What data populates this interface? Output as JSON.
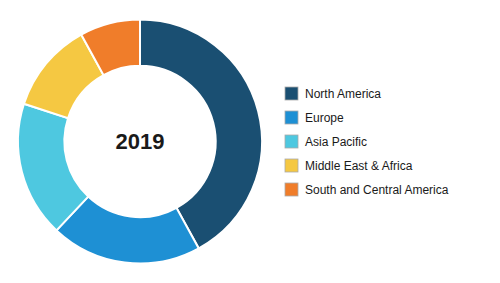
{
  "chart_data": {
    "type": "donut",
    "categories": [
      "North America",
      "Europe",
      "Asia Pacific",
      "Middle East & Africa",
      "South and Central America"
    ],
    "values": [
      42,
      20,
      18,
      12,
      8
    ],
    "colors": [
      "#1a4f72",
      "#1e90d4",
      "#4ec8e0",
      "#f5c842",
      "#f07d2a"
    ],
    "annotations": [
      "2019"
    ],
    "legend": "right"
  }
}
